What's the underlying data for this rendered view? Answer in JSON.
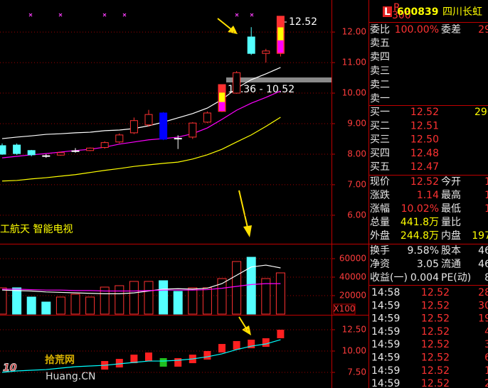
{
  "main": {
    "ylim": [
      5.09,
      13.05
    ],
    "yticks": [
      {
        "value": 6,
        "label": "6.00"
      },
      {
        "value": 7,
        "label": "7.00"
      },
      {
        "value": 8,
        "label": "8.00"
      },
      {
        "value": 9,
        "label": "9.00"
      },
      {
        "value": 10,
        "label": "10.00"
      },
      {
        "value": 11,
        "label": "11.00"
      },
      {
        "value": 12,
        "label": "12.00"
      }
    ],
    "open": [
      8.28,
      8.3,
      8.12,
      7.95,
      7.97,
      8.1,
      8.12,
      8.22,
      8.4,
      8.7,
      8.96,
      9.35,
      8.5,
      8.56,
      9.05,
      9.4,
      10.0,
      11.84,
      11.3,
      11.3
    ],
    "close": [
      8.0,
      8.02,
      7.98,
      7.94,
      8.05,
      8.11,
      8.2,
      8.38,
      8.63,
      9.1,
      9.3,
      8.49,
      8.52,
      9.02,
      9.35,
      10.28,
      10.67,
      11.3,
      11.38,
      12.52
    ],
    "high": [
      8.35,
      8.35,
      8.14,
      8.0,
      8.08,
      8.2,
      8.22,
      8.42,
      8.68,
      9.2,
      9.45,
      9.38,
      8.62,
      9.05,
      9.4,
      10.28,
      10.72,
      12.16,
      11.45,
      12.52
    ],
    "low": [
      7.98,
      7.98,
      7.93,
      7.88,
      7.95,
      8.05,
      8.1,
      8.18,
      8.36,
      8.66,
      8.9,
      8.46,
      8.17,
      8.5,
      9.02,
      9.38,
      9.98,
      11.25,
      11.0,
      11.2
    ],
    "colors": [
      "#54ffff",
      "#54ffff",
      "#54ffff",
      "#ffffff",
      "#ff3232",
      "#ffffff",
      "#ff3232",
      "#ff3232",
      "#ff3232",
      "#ff3232",
      "#ff3232",
      "#0000ff",
      "#ffffff",
      "#ff3232",
      "#ff3232",
      "#ff3232",
      "#ff3232",
      "#54ffff",
      "#ff3232",
      "#ff3232"
    ],
    "ma": [
      {
        "color": "#ffffff",
        "values": [
          8.51,
          8.56,
          8.6,
          8.65,
          8.67,
          8.7,
          8.72,
          8.77,
          8.79,
          8.84,
          8.93,
          9.05,
          9.19,
          9.33,
          9.51,
          9.79,
          10.16,
          10.44,
          10.63,
          10.84
        ]
      },
      {
        "color": "#ff00ff",
        "values": [
          7.88,
          7.93,
          7.98,
          8.02,
          8.07,
          8.12,
          8.16,
          8.23,
          8.33,
          8.4,
          8.47,
          8.51,
          8.56,
          8.67,
          8.86,
          9.14,
          9.44,
          9.67,
          9.86,
          10.07
        ]
      },
      {
        "color": "#ffff00",
        "values": [
          7.12,
          7.14,
          7.19,
          7.23,
          7.28,
          7.33,
          7.4,
          7.47,
          7.53,
          7.6,
          7.65,
          7.7,
          7.74,
          7.84,
          7.98,
          8.16,
          8.4,
          8.63,
          8.91,
          9.21
        ]
      }
    ],
    "price_label": "12.52",
    "range_label": "10.36 - 10.52",
    "concept_text": "工航天 智能电视"
  },
  "volume": {
    "ylim": [
      0,
      74600
    ],
    "yticks": [
      20000,
      40000,
      60000
    ],
    "unit_label": "X100",
    "values": [
      28450,
      28450,
      18460,
      13070,
      18460,
      21530,
      18460,
      29220,
      30760,
      35380,
      35380,
      36150,
      24610,
      28450,
      28450,
      38450,
      56910,
      61530,
      38450,
      44610
    ],
    "colors": [
      "#ff3232",
      "#54ffff",
      "#54ffff",
      "#54ffff",
      "#ff3232",
      "#ff3232",
      "#ff3232",
      "#ff3232",
      "#ff3232",
      "#ff3232",
      "#ff3232",
      "#54ffff",
      "#54ffff",
      "#ff3232",
      "#ff3232",
      "#ff3232",
      "#ff3232",
      "#54ffff",
      "#ff3232",
      "#ff3232"
    ],
    "ma": [
      {
        "color": "#ffffff",
        "values": [
          26000,
          25500,
          25000,
          24000,
          23500,
          23000,
          22500,
          22000,
          22000,
          23000,
          25000,
          27000,
          27500,
          27000,
          28000,
          33000,
          42000,
          51000,
          53000,
          50000
        ]
      },
      {
        "color": "#ff00ff",
        "values": [
          27000,
          27000,
          26500,
          26000,
          26000,
          25500,
          25500,
          25000,
          25000,
          25000,
          25500,
          26000,
          26000,
          26000,
          26500,
          28000,
          30000,
          32000,
          33000,
          33000
        ]
      }
    ]
  },
  "indicator": {
    "ylim": [
      5.67,
      14.08
    ],
    "yticks": [
      {
        "value": 7.5,
        "label": "7.50"
      },
      {
        "value": 10,
        "label": "10.00"
      },
      {
        "value": 12.5,
        "label": "12.50"
      }
    ],
    "line": {
      "color": "#00ffff",
      "values": [
        7.5,
        7.67,
        7.75,
        7.83,
        8.0,
        8.17,
        8.25,
        8.33,
        8.5,
        8.67,
        8.83,
        8.83,
        8.92,
        9.08,
        9.33,
        9.67,
        10.17,
        10.58,
        10.83,
        11.33
      ]
    },
    "signals": {
      "values": [
        null,
        null,
        null,
        null,
        null,
        null,
        null,
        8.33,
        8.58,
        9.08,
        9.33,
        8.67,
        8.67,
        9.08,
        9.5,
        10.33,
        10.67,
        10.83,
        11.0,
        12.0
      ],
      "colors": [
        "#ff2020",
        "#ff2020",
        "#ff2020",
        "#ff2020",
        "#ff2020",
        "#ff2020",
        "#ff2020",
        "#ff2020",
        "#ff2020",
        "#ff2020",
        "#ff2020",
        "#20c020",
        "#ff2020",
        "#ff2020",
        "#ff2020",
        "#ff2020",
        "#ff2020",
        "#ff2020",
        "#ff2020",
        "#ff2020"
      ]
    }
  },
  "watermark": {
    "logo": "10",
    "site": "拾荒网",
    "url": "Huang.CN"
  },
  "quote": {
    "badge": "L",
    "badge_top": "R",
    "badge_bottom": "300",
    "code": "600839",
    "name": "四川长虹",
    "order_ratio": [
      "委比",
      "100.00%",
      "委差",
      "29"
    ],
    "asks": [
      "卖五",
      "卖四",
      "卖三",
      "卖二",
      "卖一"
    ],
    "bids": [
      [
        "买一",
        "12.52",
        "290"
      ],
      [
        "买二",
        "12.51"
      ],
      [
        "买三",
        "12.50"
      ],
      [
        "买四",
        "12.48"
      ],
      [
        "买五",
        "12.47"
      ]
    ],
    "stats": [
      [
        "现价",
        "12.52",
        "今开",
        "1"
      ],
      [
        "涨跌",
        "1.14",
        "最高",
        "1"
      ],
      [
        "涨幅",
        "10.02%",
        "最低",
        "1"
      ],
      [
        "总量",
        "441.8万",
        "量比"
      ],
      [
        "外盘",
        "244.8万",
        "内盘",
        "197"
      ]
    ],
    "finance": [
      [
        "换手",
        "9.58%",
        "股本",
        "46"
      ],
      [
        "净资",
        "3.05",
        "流通",
        "46"
      ],
      [
        "收益(一)",
        "0.004",
        "PE(动)",
        "8"
      ]
    ],
    "ticks": [
      [
        "14:58",
        "12.52",
        "28"
      ],
      [
        "14:59",
        "12.52",
        "30"
      ],
      [
        "14:59",
        "12.52",
        "19"
      ],
      [
        "14:59",
        "12.52",
        "4"
      ],
      [
        "14:59",
        "12.52",
        "3"
      ],
      [
        "14:59",
        "12.52",
        "6"
      ],
      [
        "14:59",
        "12.52",
        "1"
      ],
      [
        "14:59",
        "12.52",
        "2"
      ]
    ]
  }
}
